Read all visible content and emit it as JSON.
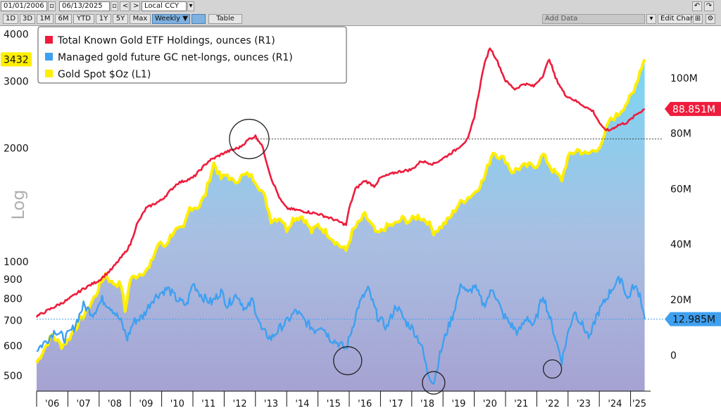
{
  "toolbar": {
    "start_date": "01/01/2006",
    "end_date": "06/13/2025",
    "currency": "Local CCY",
    "nav_back": "<",
    "nav_forward": ">",
    "periods": [
      "1D",
      "3D",
      "1M",
      "6M",
      "YTD",
      "1Y",
      "5Y",
      "Max"
    ],
    "frequency": "Weekly ▼",
    "table_label": "Table",
    "add_data_label": "Add Data",
    "edit_chart_label": "Edit Chart",
    "undo_icon": "undo-icon",
    "redo_icon": "redo-icon",
    "settings_icon": "gear-icon",
    "colors": {
      "bar": "#d4d4d4",
      "selected": "#7fb1e0"
    }
  },
  "chart_data": {
    "type": "line",
    "ylabel_left": "Log",
    "left_axis": {
      "scale": "log",
      "ticks": [
        500,
        600,
        700,
        800,
        900,
        1000,
        2000,
        3000,
        4000
      ],
      "range": [
        455,
        4150
      ]
    },
    "right_axis": {
      "ticks": [
        0,
        20,
        40,
        60,
        80,
        100
      ],
      "tick_labels": [
        "0",
        "20M",
        "40M",
        "60M",
        "80M",
        "100M"
      ],
      "range": [
        -13,
        118
      ],
      "unit": "M ounces"
    },
    "x_ticks": [
      "'06",
      "'07",
      "'08",
      "'09",
      "'10",
      "'11",
      "'12",
      "'13",
      "'14",
      "'15",
      "'16",
      "'17",
      "'18",
      "'19",
      "'20",
      "'21",
      "'22",
      "'23",
      "'24",
      "'25"
    ],
    "x_range": [
      2006.0,
      2025.55
    ],
    "legend": {
      "placement": "top-left",
      "items": [
        {
          "label": "Total Known Gold ETF Holdings, ounces (R1)",
          "color": "#ee1c3c"
        },
        {
          "label": "Managed gold future GC net-longs, ounces (R1)",
          "color": "#3fa0f0"
        },
        {
          "label": "Gold Spot $Oz (L1)",
          "color": "#ffee00"
        }
      ]
    },
    "last_values": {
      "gold_spot": {
        "label": "3432",
        "value": 3432,
        "color": "#ffee00"
      },
      "etf_holdings": {
        "label": "88.851M",
        "value": 88.851,
        "color": "#ee1c3c"
      },
      "net_longs": {
        "label": "12.985M",
        "value": 12.985,
        "color": "#3fa0f0"
      }
    },
    "series": [
      {
        "name": "Gold Spot $Oz (L1)",
        "axis": "left",
        "color": "#ffee00",
        "x": [
          2006.0,
          2006.3,
          2006.5,
          2006.8,
          2007.0,
          2007.3,
          2007.6,
          2007.9,
          2008.2,
          2008.4,
          2008.7,
          2008.83,
          2009.0,
          2009.3,
          2009.6,
          2009.9,
          2010.1,
          2010.4,
          2010.7,
          2010.9,
          2011.2,
          2011.4,
          2011.67,
          2011.9,
          2012.1,
          2012.3,
          2012.6,
          2012.8,
          2013.0,
          2013.3,
          2013.5,
          2013.8,
          2014.0,
          2014.2,
          2014.5,
          2014.8,
          2015.0,
          2015.3,
          2015.6,
          2015.9,
          2016.1,
          2016.5,
          2016.9,
          2017.2,
          2017.5,
          2017.7,
          2017.9,
          2018.2,
          2018.5,
          2018.7,
          2018.9,
          2019.2,
          2019.5,
          2019.8,
          2020.0,
          2020.3,
          2020.6,
          2020.8,
          2021.0,
          2021.2,
          2021.5,
          2021.8,
          2022.0,
          2022.2,
          2022.5,
          2022.8,
          2023.0,
          2023.3,
          2023.6,
          2023.9,
          2024.1,
          2024.3,
          2024.6,
          2024.9,
          2025.1,
          2025.3,
          2025.45
        ],
        "y": [
          540,
          600,
          640,
          600,
          620,
          680,
          740,
          820,
          930,
          880,
          870,
          740,
          900,
          930,
          960,
          1120,
          1100,
          1210,
          1220,
          1390,
          1400,
          1510,
          1820,
          1660,
          1700,
          1620,
          1690,
          1700,
          1640,
          1480,
          1290,
          1310,
          1220,
          1300,
          1320,
          1200,
          1250,
          1190,
          1120,
          1070,
          1200,
          1330,
          1180,
          1240,
          1260,
          1300,
          1280,
          1320,
          1280,
          1200,
          1230,
          1300,
          1420,
          1480,
          1520,
          1650,
          1960,
          1900,
          1860,
          1730,
          1780,
          1800,
          1800,
          1920,
          1750,
          1650,
          1890,
          1980,
          1920,
          1990,
          2050,
          2350,
          2450,
          2650,
          2800,
          3200,
          3432
        ]
      },
      {
        "name": "Total Known Gold ETF Holdings, ounces (R1)",
        "axis": "right",
        "color": "#ee1c3c",
        "x": [
          2006.0,
          2006.5,
          2007.0,
          2007.5,
          2008.0,
          2008.4,
          2008.83,
          2009.0,
          2009.2,
          2009.5,
          2010.0,
          2010.5,
          2011.0,
          2011.5,
          2012.0,
          2012.5,
          2012.8,
          2013.0,
          2013.2,
          2013.5,
          2013.8,
          2014.0,
          2014.5,
          2015.0,
          2015.5,
          2015.9,
          2016.0,
          2016.2,
          2016.5,
          2016.8,
          2017.0,
          2017.5,
          2018.0,
          2018.3,
          2018.7,
          2019.0,
          2019.4,
          2019.8,
          2020.0,
          2020.3,
          2020.5,
          2020.7,
          2021.0,
          2021.3,
          2021.6,
          2021.9,
          2022.2,
          2022.4,
          2022.6,
          2022.9,
          2023.2,
          2023.5,
          2023.8,
          2024.1,
          2024.3,
          2024.6,
          2024.9,
          2025.2,
          2025.45
        ],
        "y": [
          14,
          17,
          20,
          24,
          27,
          31,
          37,
          40,
          47,
          53,
          56,
          62,
          64,
          70,
          73,
          75,
          78,
          79,
          76,
          64,
          56,
          53,
          52,
          51,
          49,
          47,
          53,
          60,
          63,
          61,
          64,
          66,
          67,
          70,
          69,
          71,
          74,
          78,
          86,
          104,
          111,
          107,
          99,
          96,
          98,
          97,
          101,
          107,
          100,
          94,
          92,
          90,
          88,
          82,
          81,
          83,
          84,
          87,
          88.851
        ]
      },
      {
        "name": "Managed gold future GC net-longs, ounces (R1)",
        "axis": "right",
        "color": "#3fa0f0",
        "x": [
          2006.0,
          2006.3,
          2006.6,
          2006.9,
          2007.2,
          2007.5,
          2007.8,
          2008.1,
          2008.4,
          2008.7,
          2008.9,
          2009.1,
          2009.4,
          2009.7,
          2009.9,
          2010.2,
          2010.5,
          2010.8,
          2011.0,
          2011.3,
          2011.6,
          2011.9,
          2012.1,
          2012.4,
          2012.7,
          2012.9,
          2013.2,
          2013.5,
          2013.8,
          2014.0,
          2014.3,
          2014.6,
          2014.9,
          2015.1,
          2015.4,
          2015.7,
          2015.9,
          2016.1,
          2016.3,
          2016.6,
          2016.9,
          2017.2,
          2017.5,
          2017.8,
          2018.0,
          2018.3,
          2018.5,
          2018.7,
          2018.9,
          2019.1,
          2019.3,
          2019.6,
          2019.8,
          2020.0,
          2020.3,
          2020.6,
          2020.9,
          2021.1,
          2021.4,
          2021.7,
          2021.9,
          2022.2,
          2022.4,
          2022.6,
          2022.8,
          2023.0,
          2023.2,
          2023.5,
          2023.7,
          2023.9,
          2024.1,
          2024.4,
          2024.7,
          2024.9,
          2025.1,
          2025.3,
          2025.45
        ],
        "y": [
          2,
          5,
          9,
          6,
          10,
          18,
          15,
          20,
          17,
          12,
          6,
          12,
          14,
          20,
          22,
          24,
          20,
          18,
          26,
          21,
          19,
          23,
          18,
          22,
          16,
          20,
          9,
          6,
          10,
          12,
          16,
          12,
          9,
          11,
          6,
          4,
          2,
          10,
          18,
          24,
          14,
          10,
          18,
          12,
          10,
          4,
          -6,
          -10,
          0,
          8,
          14,
          26,
          22,
          25,
          18,
          24,
          15,
          12,
          8,
          14,
          10,
          22,
          14,
          6,
          -2,
          8,
          16,
          10,
          6,
          14,
          18,
          24,
          28,
          20,
          25,
          22,
          12.985
        ]
      }
    ],
    "markers": [
      {
        "x": 2012.8,
        "y": 78,
        "axis": "right"
      },
      {
        "x": 2015.95,
        "y": -2,
        "axis": "right"
      },
      {
        "x": 2018.7,
        "y": -10,
        "axis": "right"
      },
      {
        "x": 2022.5,
        "y": -5,
        "axis": "right"
      }
    ]
  }
}
